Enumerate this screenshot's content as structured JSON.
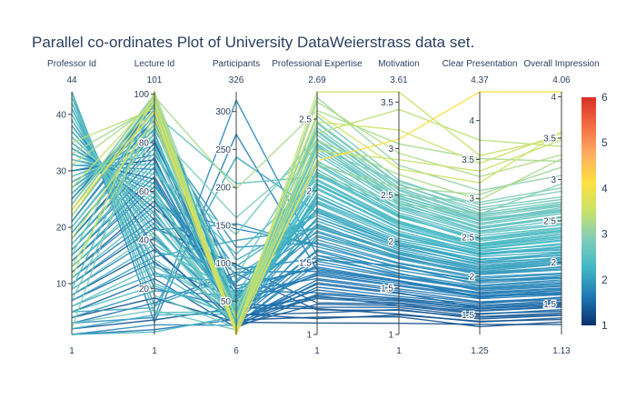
{
  "chart_data": {
    "type": "parallel_coordinates",
    "title": "Parallel co-ordinates Plot of University DataWeierstrass data set.",
    "color_by": "Overall Impression",
    "colorscale": [
      "#08306b",
      "#1f77b4",
      "#41b6c4",
      "#7fcdbb",
      "#c7e26b",
      "#fee040",
      "#fdae61",
      "#f46d43",
      "#d73027"
    ],
    "colorbar": {
      "range": [
        1,
        6
      ],
      "ticks": [
        "1",
        "2",
        "3",
        "4",
        "5",
        "6"
      ]
    },
    "axes": [
      {
        "name": "Professor Id",
        "range": [
          1,
          44
        ],
        "range_labels": [
          "1",
          "44"
        ],
        "ticks": [
          10,
          20,
          30,
          40
        ]
      },
      {
        "name": "Lecture Id",
        "range": [
          1,
          101
        ],
        "range_labels": [
          "1",
          "101"
        ],
        "ticks": [
          20,
          40,
          60,
          80,
          100
        ]
      },
      {
        "name": "Participants",
        "range": [
          6,
          326
        ],
        "range_labels": [
          "6",
          "326"
        ],
        "ticks": [
          50,
          100,
          150,
          200,
          250,
          300
        ]
      },
      {
        "name": "Professional Expertise",
        "range": [
          1,
          2.69
        ],
        "range_labels": [
          "1",
          "2.69"
        ],
        "ticks": [
          1,
          1.5,
          2,
          2.5
        ]
      },
      {
        "name": "Motivation",
        "range": [
          1,
          3.61
        ],
        "range_labels": [
          "1",
          "3.61"
        ],
        "ticks": [
          1,
          1.5,
          2,
          2.5,
          3,
          3.5
        ]
      },
      {
        "name": "Clear Presentation",
        "range": [
          1.25,
          4.37
        ],
        "range_labels": [
          "1.25",
          "4.37"
        ],
        "ticks": [
          1.5,
          2,
          2.5,
          3,
          3.5,
          4
        ]
      },
      {
        "name": "Overall Impression",
        "range": [
          1.13,
          4.06
        ],
        "range_labels": [
          "1.13",
          "4.06"
        ],
        "ticks": [
          1.5,
          2,
          2.5,
          3,
          3.5,
          4
        ]
      }
    ],
    "records": [
      [
        1,
        3,
        26,
        1.31,
        1.38,
        1.62,
        1.54
      ],
      [
        1,
        5,
        18,
        1.52,
        1.74,
        1.88,
        1.79
      ],
      [
        2,
        7,
        41,
        1.18,
        1.22,
        1.41,
        1.33
      ],
      [
        2,
        9,
        33,
        1.96,
        2.07,
        2.28,
        2.16
      ],
      [
        3,
        11,
        12,
        2.41,
        2.55,
        2.71,
        2.66
      ],
      [
        3,
        14,
        88,
        1.44,
        1.57,
        1.74,
        1.62
      ],
      [
        4,
        16,
        22,
        1.08,
        1.12,
        1.38,
        1.25
      ],
      [
        4,
        19,
        57,
        1.69,
        1.83,
        2.04,
        1.92
      ],
      [
        5,
        21,
        30,
        2.12,
        2.28,
        2.45,
        2.37
      ],
      [
        5,
        24,
        15,
        1.27,
        1.31,
        1.55,
        1.46
      ],
      [
        6,
        26,
        74,
        1.85,
        1.96,
        2.22,
        2.08
      ],
      [
        6,
        29,
        40,
        2.32,
        2.41,
        2.63,
        2.55
      ],
      [
        7,
        31,
        19,
        1.36,
        1.45,
        1.59,
        1.51
      ],
      [
        7,
        33,
        130,
        1.74,
        1.88,
        2.11,
        2.01
      ],
      [
        8,
        36,
        25,
        1.12,
        1.19,
        1.35,
        1.28
      ],
      [
        8,
        38,
        60,
        2.05,
        2.17,
        2.38,
        2.29
      ],
      [
        9,
        41,
        35,
        1.58,
        1.66,
        1.81,
        1.71
      ],
      [
        9,
        43,
        16,
        2.48,
        2.62,
        2.81,
        2.73
      ],
      [
        10,
        45,
        98,
        1.22,
        1.33,
        1.52,
        1.41
      ],
      [
        10,
        47,
        28,
        1.81,
        1.95,
        2.14,
        2.04
      ],
      [
        11,
        49,
        50,
        1.41,
        1.52,
        1.73,
        1.63
      ],
      [
        11,
        52,
        20,
        2.18,
        2.31,
        2.52,
        2.42
      ],
      [
        12,
        54,
        145,
        1.63,
        1.72,
        1.95,
        1.82
      ],
      [
        12,
        56,
        32,
        1.15,
        1.27,
        1.45,
        1.36
      ],
      [
        13,
        58,
        44,
        1.91,
        2.03,
        2.29,
        2.15
      ],
      [
        13,
        60,
        21,
        2.29,
        2.44,
        2.66,
        2.59
      ],
      [
        14,
        62,
        66,
        1.47,
        1.58,
        1.77,
        1.66
      ],
      [
        14,
        64,
        27,
        1.77,
        1.86,
        2.06,
        1.98
      ],
      [
        15,
        66,
        38,
        1.26,
        1.36,
        1.58,
        1.49
      ],
      [
        15,
        68,
        112,
        2.08,
        2.22,
        2.41,
        2.33
      ],
      [
        16,
        70,
        24,
        1.55,
        1.63,
        1.85,
        1.75
      ],
      [
        16,
        72,
        52,
        1.93,
        2.08,
        2.33,
        2.21
      ],
      [
        17,
        74,
        17,
        1.33,
        1.41,
        1.64,
        1.58
      ],
      [
        17,
        76,
        82,
        2.36,
        2.49,
        2.74,
        2.63
      ],
      [
        18,
        78,
        29,
        1.66,
        1.77,
        1.99,
        1.87
      ],
      [
        18,
        80,
        46,
        1.19,
        1.29,
        1.48,
        1.39
      ],
      [
        19,
        82,
        36,
        2.01,
        2.14,
        2.35,
        2.26
      ],
      [
        19,
        84,
        19,
        1.49,
        1.61,
        1.83,
        1.72
      ],
      [
        20,
        86,
        104,
        1.83,
        1.97,
        2.19,
        2.09
      ],
      [
        20,
        88,
        31,
        2.44,
        2.58,
        2.79,
        2.69
      ],
      [
        21,
        90,
        23,
        1.38,
        1.47,
        1.67,
        1.57
      ],
      [
        21,
        92,
        55,
        1.72,
        1.84,
        2.02,
        1.95
      ],
      [
        22,
        94,
        14,
        2.25,
        2.39,
        2.58,
        2.51
      ],
      [
        22,
        96,
        64,
        1.29,
        1.39,
        1.61,
        1.52
      ],
      [
        23,
        98,
        34,
        1.88,
        2.01,
        2.25,
        2.13
      ],
      [
        23,
        99,
        198,
        2.56,
        3.05,
        3.51,
        3.22
      ],
      [
        24,
        100,
        26,
        1.59,
        1.69,
        1.91,
        1.81
      ],
      [
        24,
        97,
        42,
        2.11,
        2.26,
        2.48,
        2.39
      ],
      [
        25,
        95,
        18,
        1.21,
        1.31,
        1.51,
        1.43
      ],
      [
        25,
        93,
        78,
        1.79,
        1.91,
        2.12,
        2.03
      ],
      [
        26,
        91,
        30,
        2.33,
        2.47,
        2.68,
        2.61
      ],
      [
        26,
        89,
        48,
        1.43,
        1.55,
        1.78,
        1.68
      ],
      [
        27,
        87,
        21,
        1.98,
        2.11,
        2.31,
        2.23
      ],
      [
        27,
        85,
        121,
        1.64,
        1.76,
        1.97,
        1.86
      ],
      [
        28,
        83,
        37,
        2.21,
        2.36,
        2.57,
        2.47
      ],
      [
        28,
        81,
        25,
        1.35,
        1.44,
        1.66,
        1.55
      ],
      [
        29,
        79,
        58,
        1.87,
        1.99,
        2.21,
        2.11
      ],
      [
        29,
        77,
        16,
        2.47,
        2.61,
        2.85,
        2.76
      ],
      [
        30,
        75,
        92,
        1.53,
        1.65,
        1.87,
        1.77
      ],
      [
        30,
        73,
        33,
        1.11,
        1.21,
        1.42,
        1.31
      ],
      [
        31,
        71,
        45,
        2.04,
        2.19,
        2.39,
        2.31
      ],
      [
        31,
        69,
        24,
        1.68,
        1.81,
        2.02,
        1.91
      ],
      [
        32,
        67,
        138,
        2.39,
        2.52,
        2.76,
        2.68
      ],
      [
        32,
        65,
        28,
        1.25,
        1.34,
        1.56,
        1.47
      ],
      [
        33,
        63,
        51,
        1.81,
        1.93,
        2.16,
        2.06
      ],
      [
        33,
        61,
        20,
        2.15,
        2.29,
        2.49,
        2.41
      ],
      [
        34,
        59,
        70,
        1.46,
        1.57,
        1.79,
        1.69
      ],
      [
        34,
        57,
        35,
        1.92,
        2.06,
        2.27,
        2.18
      ],
      [
        35,
        55,
        17,
        2.31,
        2.46,
        2.71,
        2.62
      ],
      [
        35,
        53,
        86,
        1.17,
        1.26,
        1.47,
        1.37
      ],
      [
        36,
        51,
        39,
        1.75,
        1.87,
        2.08,
        1.99
      ],
      [
        36,
        50,
        22,
        2.52,
        2.66,
        2.88,
        2.79
      ],
      [
        37,
        48,
        62,
        1.39,
        1.49,
        1.71,
        1.61
      ],
      [
        37,
        46,
        30,
        2.07,
        2.21,
        2.42,
        2.35
      ],
      [
        38,
        44,
        152,
        1.61,
        1.73,
        1.93,
        1.84
      ],
      [
        38,
        42,
        27,
        1.95,
        2.09,
        2.29,
        2.19
      ],
      [
        39,
        40,
        43,
        2.27,
        2.42,
        2.61,
        2.54
      ],
      [
        39,
        37,
        19,
        1.28,
        1.37,
        1.59,
        1.48
      ],
      [
        40,
        35,
        96,
        1.86,
        1.99,
        2.18,
        2.12
      ],
      [
        40,
        32,
        32,
        2.42,
        2.56,
        2.78,
        2.71
      ],
      [
        41,
        30,
        53,
        1.51,
        1.62,
        1.84,
        1.74
      ],
      [
        41,
        27,
        24,
        2.02,
        2.15,
        2.36,
        2.27
      ],
      [
        42,
        25,
        76,
        1.71,
        1.82,
        2.05,
        1.94
      ],
      [
        42,
        22,
        29,
        2.19,
        2.34,
        2.55,
        2.45
      ],
      [
        43,
        20,
        41,
        1.42,
        1.53,
        1.75,
        1.64
      ],
      [
        43,
        17,
        15,
        2.35,
        2.49,
        2.72,
        2.64
      ],
      [
        44,
        13,
        84,
        1.76,
        1.89,
        2.09,
        2.01
      ],
      [
        44,
        10,
        36,
        2.13,
        2.27,
        2.47,
        2.38
      ],
      [
        44,
        6,
        270,
        1.45,
        1.58,
        1.72,
        1.67
      ],
      [
        1,
        2,
        30,
        2.05,
        2.2,
        2.4,
        2.31
      ],
      [
        3,
        8,
        315,
        1.55,
        1.72,
        1.94,
        1.81
      ],
      [
        5,
        12,
        240,
        1.85,
        1.97,
        2.18,
        2.05
      ],
      [
        7,
        85,
        160,
        2.3,
        2.64,
        2.92,
        2.86
      ],
      [
        9,
        92,
        205,
        2.1,
        2.37,
        2.63,
        2.55
      ],
      [
        11,
        101,
        12,
        2.69,
        3.61,
        3.55,
        3.51
      ],
      [
        13,
        88,
        9,
        2.62,
        2.95,
        3.28,
        3.3
      ],
      [
        15,
        99,
        13,
        2.2,
        2.5,
        2.95,
        2.9
      ],
      [
        22,
        97,
        11,
        2.48,
        3.2,
        3.45,
        3.56
      ],
      [
        24,
        100,
        7,
        2.65,
        2.82,
        3.1,
        3.05
      ],
      [
        31,
        96,
        8,
        2.35,
        2.72,
        2.98,
        3.25
      ],
      [
        35,
        94,
        10,
        2.4,
        3.42,
        3.75,
        3.4
      ],
      [
        33,
        95,
        14,
        2.18,
        2.58,
        3.05,
        3.15
      ],
      [
        27,
        98,
        12,
        2.28,
        2.88,
        3.35,
        3.48
      ],
      [
        23,
        93,
        6,
        2.21,
        3.1,
        4.37,
        4.06
      ],
      [
        2,
        101,
        44,
        2.12,
        2.41,
        2.8,
        2.95
      ],
      [
        18,
        90,
        26,
        2.54,
        2.78,
        3.2,
        3.58
      ]
    ]
  }
}
